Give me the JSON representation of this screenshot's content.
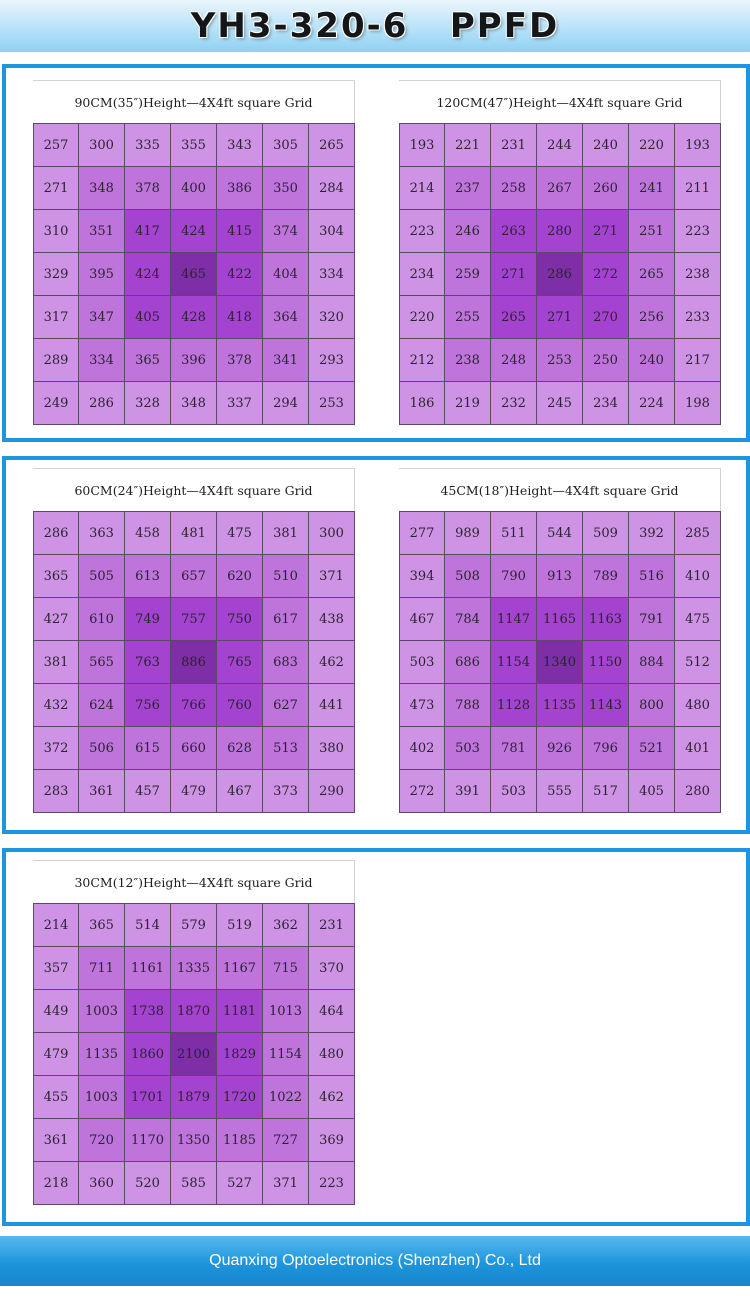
{
  "header": {
    "title": "YH3-320-6   PPFD"
  },
  "footer": {
    "company": "Quanxing Optoelectronics (Shenzhen) Co., Ltd"
  },
  "colors": {
    "border_blue": "#1a97e0",
    "level1": "#cf93e6",
    "level2": "#bf74dc",
    "level3": "#a543d1",
    "level4": "#7e2ea6"
  },
  "chart_data": [
    {
      "type": "heatmap",
      "title": "90CM(35″)Height—4X4ft square Grid",
      "grid": [
        [
          257,
          300,
          335,
          355,
          343,
          305,
          265
        ],
        [
          271,
          348,
          378,
          400,
          386,
          350,
          284
        ],
        [
          310,
          351,
          417,
          424,
          415,
          374,
          304
        ],
        [
          329,
          395,
          424,
          465,
          422,
          404,
          334
        ],
        [
          317,
          347,
          405,
          428,
          418,
          364,
          320
        ],
        [
          289,
          334,
          365,
          396,
          378,
          341,
          293
        ],
        [
          249,
          286,
          328,
          348,
          337,
          294,
          253
        ]
      ]
    },
    {
      "type": "heatmap",
      "title": "120CM(47″)Height—4X4ft square Grid",
      "grid": [
        [
          193,
          221,
          231,
          244,
          240,
          220,
          193
        ],
        [
          214,
          237,
          258,
          267,
          260,
          241,
          211
        ],
        [
          223,
          246,
          263,
          280,
          271,
          251,
          223
        ],
        [
          234,
          259,
          271,
          286,
          272,
          265,
          238
        ],
        [
          220,
          255,
          265,
          271,
          270,
          256,
          233
        ],
        [
          212,
          238,
          248,
          253,
          250,
          240,
          217
        ],
        [
          186,
          219,
          232,
          245,
          234,
          224,
          198
        ]
      ]
    },
    {
      "type": "heatmap",
      "title": "60CM(24″)Height—4X4ft square Grid",
      "grid": [
        [
          286,
          363,
          458,
          481,
          475,
          381,
          300
        ],
        [
          365,
          505,
          613,
          657,
          620,
          510,
          371
        ],
        [
          427,
          610,
          749,
          757,
          750,
          617,
          438
        ],
        [
          381,
          565,
          763,
          886,
          765,
          683,
          462
        ],
        [
          432,
          624,
          756,
          766,
          760,
          627,
          441
        ],
        [
          372,
          506,
          615,
          660,
          628,
          513,
          380
        ],
        [
          283,
          361,
          457,
          479,
          467,
          373,
          290
        ]
      ]
    },
    {
      "type": "heatmap",
      "title": "45CM(18″)Height—4X4ft square Grid",
      "grid": [
        [
          277,
          989,
          511,
          544,
          509,
          392,
          285
        ],
        [
          394,
          508,
          790,
          913,
          789,
          516,
          410
        ],
        [
          467,
          784,
          1147,
          1165,
          1163,
          791,
          475
        ],
        [
          503,
          686,
          1154,
          1340,
          1150,
          884,
          512
        ],
        [
          473,
          788,
          1128,
          1135,
          1143,
          800,
          480
        ],
        [
          402,
          503,
          781,
          926,
          796,
          521,
          401
        ],
        [
          272,
          391,
          503,
          555,
          517,
          405,
          280
        ]
      ]
    },
    {
      "type": "heatmap",
      "title": "30CM(12″)Height—4X4ft square Grid",
      "grid": [
        [
          214,
          365,
          514,
          579,
          519,
          362,
          231
        ],
        [
          357,
          711,
          1161,
          1335,
          1167,
          715,
          370
        ],
        [
          449,
          1003,
          1738,
          1870,
          1181,
          1013,
          464
        ],
        [
          479,
          1135,
          1860,
          2100,
          1829,
          1154,
          480
        ],
        [
          455,
          1003,
          1701,
          1879,
          1720,
          1022,
          462
        ],
        [
          361,
          720,
          1170,
          1350,
          1185,
          727,
          369
        ],
        [
          218,
          360,
          520,
          585,
          527,
          371,
          223
        ]
      ]
    }
  ]
}
